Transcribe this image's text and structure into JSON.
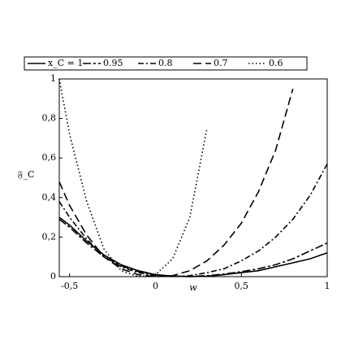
{
  "chart_data": {
    "type": "line",
    "x_label": "w",
    "y_label": "𝔉_C",
    "x": [
      -0.56,
      -0.5,
      -0.4,
      -0.3,
      -0.2,
      -0.1,
      0,
      0.1,
      0.2,
      0.3,
      0.4,
      0.5,
      0.6,
      0.7,
      0.8,
      0.9,
      1.0
    ],
    "series": [
      {
        "name": "x_C = 1",
        "color": "#000000",
        "dash": "none",
        "values": [
          0.3,
          0.26,
          0.18,
          0.11,
          0.06,
          0.03,
          0.01,
          0.003,
          0.0,
          0.002,
          0.01,
          0.02,
          0.03,
          0.05,
          0.07,
          0.09,
          0.12
        ]
      },
      {
        "name": "0.95",
        "color": "#000000",
        "dash": "10 3 3 3",
        "values": [
          0.29,
          0.25,
          0.17,
          0.1,
          0.055,
          0.025,
          0.008,
          0.002,
          0.001,
          0.005,
          0.013,
          0.025,
          0.04,
          0.06,
          0.09,
          0.13,
          0.17
        ]
      },
      {
        "name": "0.8",
        "color": "#000000",
        "dash": "7 3 2 3",
        "values": [
          0.38,
          0.3,
          0.19,
          0.1,
          0.05,
          0.02,
          0.005,
          0.0,
          0.005,
          0.02,
          0.04,
          0.08,
          0.13,
          0.2,
          0.29,
          0.41,
          0.57
        ]
      },
      {
        "name": "0.7",
        "color": "#000000",
        "dash": "10 5",
        "values": [
          0.48,
          0.36,
          0.21,
          0.1,
          0.04,
          0.01,
          0.0,
          0.005,
          0.03,
          0.08,
          0.16,
          0.27,
          0.43,
          0.64,
          0.95,
          null,
          null
        ]
      },
      {
        "name": "0.6",
        "color": "#000000",
        "dash": "1.5 3",
        "values": [
          1.0,
          0.72,
          0.38,
          0.14,
          0.03,
          0.0,
          0.01,
          0.09,
          0.3,
          0.75,
          null,
          null,
          null,
          null,
          null,
          null,
          null
        ]
      }
    ],
    "xlim": [
      -0.56,
      1.0
    ],
    "ylim": [
      0,
      1
    ],
    "xticks": [
      {
        "value": -0.5,
        "label": "-0,5"
      },
      0,
      {
        "value": 0.5,
        "label": "0,5"
      },
      1
    ],
    "yticks": [
      0,
      {
        "value": 0.2,
        "label": "0,2"
      },
      {
        "value": 0.4,
        "label": "0,4"
      },
      {
        "value": 0.6,
        "label": "0,6"
      },
      {
        "value": 0.8,
        "label": "0,8"
      },
      1
    ]
  }
}
